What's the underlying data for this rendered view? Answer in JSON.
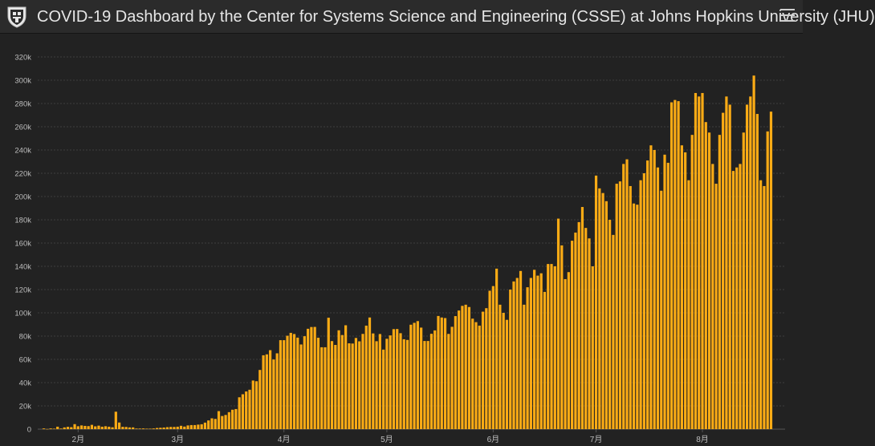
{
  "header": {
    "title": "COVID-19 Dashboard by the Center for Systems Science and Engineering (CSSE) at Johns Hopkins University (JHU)",
    "menu_icon": "hamburger-menu-icon",
    "logo_icon": "jhu-shield-logo-icon"
  },
  "colors": {
    "background": "#222222",
    "bar": "#fbab15",
    "grid": "#3d3d3d",
    "tick_text": "#bdbdbd"
  },
  "chart_data": {
    "type": "bar",
    "title": "",
    "xlabel": "",
    "ylabel": "",
    "ylim": [
      0,
      320000
    ],
    "yticks": [
      0,
      20000,
      40000,
      60000,
      80000,
      100000,
      120000,
      140000,
      160000,
      180000,
      200000,
      220000,
      240000,
      260000,
      280000,
      300000,
      320000
    ],
    "ytick_labels": [
      "0",
      "20k",
      "40k",
      "60k",
      "80k",
      "100k",
      "120k",
      "140k",
      "160k",
      "180k",
      "200k",
      "220k",
      "240k",
      "260k",
      "280k",
      "300k",
      "320k"
    ],
    "xtick_labels": [
      "2月",
      "3月",
      "4月",
      "5月",
      "6月",
      "7月",
      "8月"
    ],
    "xtick_dates": [
      "2020-02-01",
      "2020-03-01",
      "2020-04-01",
      "2020-05-01",
      "2020-06-01",
      "2020-07-01",
      "2020-08-01"
    ],
    "start_date": "2020-01-22",
    "grid": true,
    "series": [
      {
        "values": [
          600,
          100,
          600,
          400,
          2100,
          500,
          1500,
          2000,
          1700,
          4300,
          2500,
          3200,
          2800,
          2600,
          3700,
          2400,
          3000,
          2100,
          2500,
          2100,
          1600,
          15000,
          5700,
          2000,
          1900,
          1500,
          1500,
          500,
          500,
          600,
          400,
          400,
          600,
          1000,
          1200,
          1400,
          1700,
          1900,
          1900,
          2100,
          2900,
          2200,
          3200,
          3500,
          3500,
          3900,
          4200,
          5600,
          7500,
          9300,
          8800,
          15500,
          11300,
          12200,
          14600,
          16700,
          17300,
          27400,
          30000,
          32400,
          33900,
          41800,
          41200,
          50900,
          63500,
          64300,
          67900,
          59900,
          65200,
          76500,
          76500,
          80300,
          82800,
          81800,
          78700,
          72800,
          79900,
          86300,
          87800,
          87900,
          78600,
          70400,
          70400,
          95800,
          75700,
          72400,
          85000,
          80900,
          89300,
          73800,
          73600,
          78400,
          75500,
          81900,
          89000,
          96000,
          82300,
          75600,
          81800,
          68400,
          77700,
          80600,
          86000,
          86100,
          82500,
          77300,
          76700,
          89800,
          91400,
          92900,
          87300,
          75800,
          75800,
          82000,
          84900,
          97300,
          96000,
          95500,
          81900,
          88000,
          97200,
          102000,
          106000,
          107000,
          105000,
          95000,
          92000,
          89000,
          101000,
          104000,
          119000,
          123000,
          138000,
          107000,
          100000,
          94000,
          120000,
          127000,
          130000,
          136000,
          107000,
          122000,
          130000,
          137000,
          132000,
          134000,
          118000,
          142000,
          142000,
          140000,
          181000,
          158000,
          129000,
          135000,
          162000,
          169000,
          178000,
          191000,
          173000,
          164000,
          140000,
          218000,
          207000,
          203000,
          196000,
          180000,
          167000,
          211000,
          213000,
          228000,
          232000,
          209000,
          194000,
          193000,
          214000,
          220000,
          231000,
          244000,
          240000,
          225000,
          205000,
          236000,
          229000,
          281000,
          283000,
          282000,
          244000,
          238000,
          214000,
          253000,
          289000,
          286000,
          289000,
          264000,
          255000,
          228000,
          211000,
          253000,
          272000,
          286000,
          279000,
          222000,
          225000,
          228000,
          255000,
          279000,
          286000,
          304000,
          271000,
          214000,
          209000,
          256000,
          273000
        ]
      }
    ]
  }
}
